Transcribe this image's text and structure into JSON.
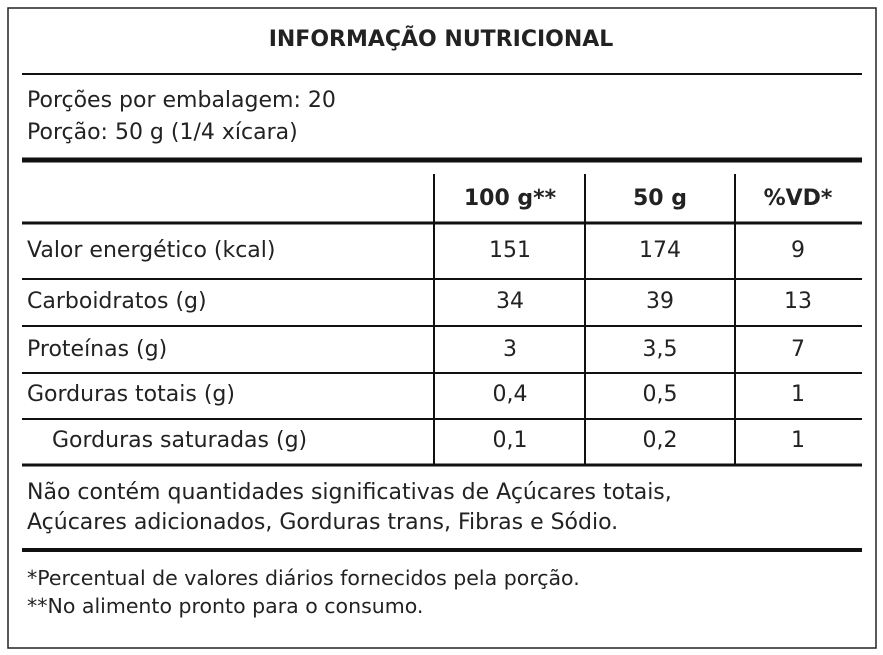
{
  "header": {
    "title": "INFORMAÇÃO NUTRICIONAL"
  },
  "portions": [
    "Porções por embalagem: 20",
    "Porção: 50 g (1/4 xícara)"
  ],
  "table": {
    "columns": [
      "100 g**",
      "50 g",
      "%VD*"
    ],
    "rows": [
      [
        "Valor energético (kcal)",
        "151",
        "174",
        "9"
      ],
      [
        "Carboidratos (g)",
        "34",
        "39",
        "13"
      ],
      [
        "Proteínas (g)",
        "3",
        "3,5",
        "7"
      ],
      [
        "Gorduras totais (g)",
        "0,4",
        "0,5",
        "1"
      ],
      [
        "Gorduras saturadas (g)",
        "0,1",
        "0,2",
        "1"
      ]
    ]
  },
  "note": [
    "Não contém quantidades significativas de Açúcares totais,",
    "Açúcares adicionados, Gorduras trans, Fibras e Sódio."
  ],
  "footnotes": [
    "*Percentual de valores diários fornecidos pela porção.",
    "**No alimento pronto para o consumo."
  ]
}
